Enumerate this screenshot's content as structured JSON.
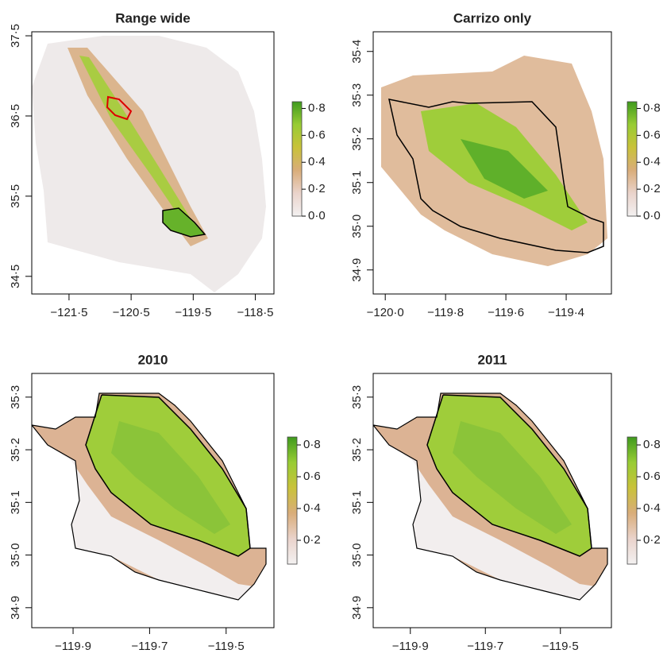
{
  "palette": [
    "#f3f1f1",
    "#ead3cb",
    "#d9ad7a",
    "#c9c23a",
    "#98cc34",
    "#3f9a1e"
  ],
  "panels": [
    {
      "title": "Range wide",
      "xlim": [
        -122.1,
        -118.2
      ],
      "ylim": [
        34.28,
        37.55
      ],
      "xticks": [
        {
          "value": -121.5,
          "label": "−121·5"
        },
        {
          "value": -120.5,
          "label": "−120·5"
        },
        {
          "value": -119.5,
          "label": "−119·5"
        },
        {
          "value": -118.5,
          "label": "−118·5"
        }
      ],
      "yticks": [
        {
          "value": 34.5,
          "label": "34·5"
        },
        {
          "value": 35.5,
          "label": "35·5"
        },
        {
          "value": 36.5,
          "label": "36·5"
        },
        {
          "value": 37.5,
          "label": "37·5"
        }
      ],
      "colorbar": {
        "lim": [
          0,
          0.85
        ],
        "ticks": [
          {
            "value": 0,
            "label": "0·0"
          },
          {
            "value": 0.2,
            "label": "0·2"
          },
          {
            "value": 0.4,
            "label": "0·4"
          },
          {
            "value": 0.6,
            "label": "0·6"
          },
          {
            "value": 0.8,
            "label": "0·8"
          }
        ]
      }
    },
    {
      "title": "Carrizo only",
      "xlim": [
        -120.04,
        -119.25
      ],
      "ylim": [
        34.845,
        35.445
      ],
      "xticks": [
        {
          "value": -120.0,
          "label": "−120·0"
        },
        {
          "value": -119.8,
          "label": "−119·8"
        },
        {
          "value": -119.6,
          "label": "−119·6"
        },
        {
          "value": -119.4,
          "label": "−119·4"
        }
      ],
      "yticks": [
        {
          "value": 34.9,
          "label": "34·9"
        },
        {
          "value": 35.0,
          "label": "35·0"
        },
        {
          "value": 35.1,
          "label": "35·1"
        },
        {
          "value": 35.2,
          "label": "35·2"
        },
        {
          "value": 35.3,
          "label": "35·3"
        },
        {
          "value": 35.4,
          "label": "35·4"
        }
      ],
      "colorbar": {
        "lim": [
          0,
          0.85
        ],
        "ticks": [
          {
            "value": 0,
            "label": "0·0"
          },
          {
            "value": 0.2,
            "label": "0·2"
          },
          {
            "value": 0.4,
            "label": "0·4"
          },
          {
            "value": 0.6,
            "label": "0·6"
          },
          {
            "value": 0.8,
            "label": "0·8"
          }
        ]
      }
    },
    {
      "title": "2010",
      "xlim": [
        -120.008,
        -119.375
      ],
      "ylim": [
        34.862,
        35.345
      ],
      "xticks": [
        {
          "value": -119.9,
          "label": "−119·9"
        },
        {
          "value": -119.7,
          "label": "−119·7"
        },
        {
          "value": -119.5,
          "label": "−119·5"
        }
      ],
      "yticks": [
        {
          "value": 34.9,
          "label": "34·9"
        },
        {
          "value": 35.0,
          "label": "35·0"
        },
        {
          "value": 35.1,
          "label": "35·1"
        },
        {
          "value": 35.2,
          "label": "35·2"
        },
        {
          "value": 35.3,
          "label": "35·3"
        }
      ],
      "colorbar": {
        "lim": [
          0.05,
          0.85
        ],
        "ticks": [
          {
            "value": 0.2,
            "label": "0·2"
          },
          {
            "value": 0.4,
            "label": "0·4"
          },
          {
            "value": 0.6,
            "label": "0·6"
          },
          {
            "value": 0.8,
            "label": "0·8"
          }
        ]
      }
    },
    {
      "title": "2011",
      "xlim": [
        -119.999,
        -119.364
      ],
      "ylim": [
        34.862,
        35.345
      ],
      "xticks": [
        {
          "value": -119.9,
          "label": "−119·9"
        },
        {
          "value": -119.7,
          "label": "−119·7"
        },
        {
          "value": -119.5,
          "label": "−119·5"
        }
      ],
      "yticks": [
        {
          "value": 34.9,
          "label": "34·9"
        },
        {
          "value": 35.0,
          "label": "35·0"
        },
        {
          "value": 35.1,
          "label": "35·1"
        },
        {
          "value": 35.2,
          "label": "35·2"
        },
        {
          "value": 35.3,
          "label": "35·3"
        }
      ],
      "colorbar": {
        "lim": [
          0.05,
          0.85
        ],
        "ticks": [
          {
            "value": 0.2,
            "label": "0·2"
          },
          {
            "value": 0.4,
            "label": "0·4"
          },
          {
            "value": 0.6,
            "label": "0·6"
          },
          {
            "value": 0.8,
            "label": "0·8"
          }
        ]
      }
    }
  ]
}
